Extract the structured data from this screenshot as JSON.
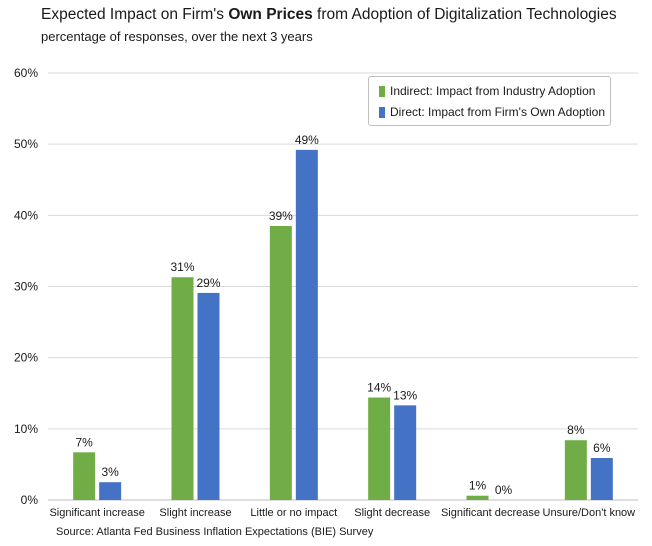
{
  "chart_data": {
    "type": "bar",
    "title_prefix": "Expected Impact on Firm's ",
    "title_bold": "Own Prices",
    "title_suffix": " from Adoption of Digitalization Technologies",
    "subtitle": "percentage of responses, over the next 3 years",
    "source": "Source: Atlanta Fed Business Inflation Expectations (BIE) Survey",
    "categories": [
      "Significant increase",
      "Slight increase",
      "Little or no impact",
      "Slight decrease",
      "Significant decrease",
      "Unsure/Don't know"
    ],
    "series": [
      {
        "name": "Indirect: Impact from Industry Adoption",
        "color": "#70ad47",
        "values": [
          6.7,
          31.3,
          38.5,
          14.4,
          0.6,
          8.4
        ],
        "labels": [
          "7%",
          "31%",
          "39%",
          "14%",
          "1%",
          "8%"
        ]
      },
      {
        "name": "Direct: Impact from Firm's Own Adoption",
        "color": "#4472c4",
        "values": [
          2.5,
          29.1,
          49.2,
          13.3,
          0.0,
          5.9
        ],
        "labels": [
          "3%",
          "29%",
          "49%",
          "13%",
          "0%",
          "6%"
        ]
      }
    ],
    "ylim": [
      0,
      60
    ],
    "yticks": [
      0,
      10,
      20,
      30,
      40,
      50,
      60
    ],
    "ytick_labels": [
      "0%",
      "10%",
      "20%",
      "30%",
      "40%",
      "50%",
      "60%"
    ],
    "grid": true,
    "legend_position": "top-right"
  }
}
